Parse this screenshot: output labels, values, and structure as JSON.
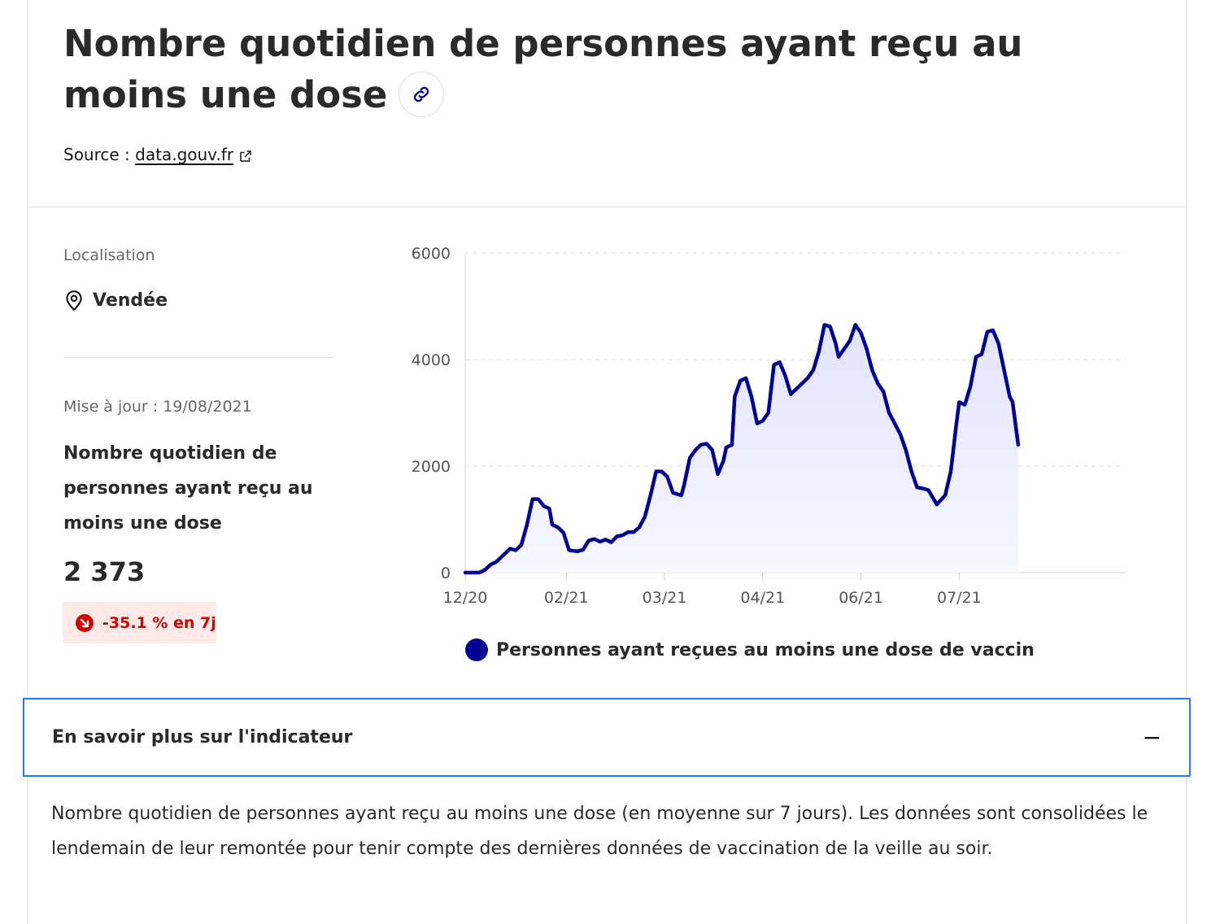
{
  "header": {
    "title": "Nombre quotidien de personnes ayant reçu au moins une dose",
    "source_prefix": "Source :",
    "source_link": "data.gouv.fr"
  },
  "sidebar": {
    "location_label": "Localisation",
    "location_value": "Vendée",
    "updated": "Mise à jour : 19/08/2021",
    "indicator_title": "Nombre quotidien de personnes ayant reçu au moins une dose",
    "value": "2 373",
    "trend": "-35.1 % en 7j"
  },
  "colors": {
    "accent": "#000091",
    "negative": "#ce0500",
    "negative_bg": "#fee9e9",
    "focus": "#2b74ff"
  },
  "chart_data": {
    "type": "area",
    "title": "",
    "xlabel": "",
    "ylabel": "",
    "ylim": [
      0,
      6000
    ],
    "y_ticks": [
      "0",
      "2000",
      "4000",
      "6000"
    ],
    "x_range": [
      "2020-12-27",
      "2021-08-19"
    ],
    "x_ticks": [
      {
        "label": "12/20",
        "date": "2020-12-27"
      },
      {
        "label": "02/21",
        "date": "2021-02-01"
      },
      {
        "label": "03/21",
        "date": "2021-03-08"
      },
      {
        "label": "04/21",
        "date": "2021-04-12"
      },
      {
        "label": "06/21",
        "date": "2021-05-17"
      },
      {
        "label": "07/21",
        "date": "2021-06-21"
      }
    ],
    "grid": true,
    "legend_position": "bottom",
    "series": [
      {
        "name": "Personnes ayant reçues au moins une dose de vaccin",
        "color": "#000091",
        "points": [
          {
            "x": "2020-12-27",
            "y": 0
          },
          {
            "x": "2021-01-01",
            "y": 0
          },
          {
            "x": "2021-01-03",
            "y": 50
          },
          {
            "x": "2021-01-05",
            "y": 150
          },
          {
            "x": "2021-01-07",
            "y": 200
          },
          {
            "x": "2021-01-09",
            "y": 300
          },
          {
            "x": "2021-01-12",
            "y": 450
          },
          {
            "x": "2021-01-14",
            "y": 420
          },
          {
            "x": "2021-01-16",
            "y": 520
          },
          {
            "x": "2021-01-18",
            "y": 900
          },
          {
            "x": "2021-01-20",
            "y": 1380
          },
          {
            "x": "2021-01-22",
            "y": 1380
          },
          {
            "x": "2021-01-24",
            "y": 1250
          },
          {
            "x": "2021-01-26",
            "y": 1200
          },
          {
            "x": "2021-01-27",
            "y": 900
          },
          {
            "x": "2021-01-29",
            "y": 850
          },
          {
            "x": "2021-01-31",
            "y": 750
          },
          {
            "x": "2021-02-02",
            "y": 420
          },
          {
            "x": "2021-02-05",
            "y": 400
          },
          {
            "x": "2021-02-07",
            "y": 430
          },
          {
            "x": "2021-02-09",
            "y": 600
          },
          {
            "x": "2021-02-11",
            "y": 630
          },
          {
            "x": "2021-02-13",
            "y": 580
          },
          {
            "x": "2021-02-15",
            "y": 620
          },
          {
            "x": "2021-02-17",
            "y": 570
          },
          {
            "x": "2021-02-19",
            "y": 680
          },
          {
            "x": "2021-02-21",
            "y": 700
          },
          {
            "x": "2021-02-23",
            "y": 760
          },
          {
            "x": "2021-02-25",
            "y": 760
          },
          {
            "x": "2021-02-27",
            "y": 850
          },
          {
            "x": "2021-03-01",
            "y": 1050
          },
          {
            "x": "2021-03-03",
            "y": 1450
          },
          {
            "x": "2021-03-05",
            "y": 1900
          },
          {
            "x": "2021-03-07",
            "y": 1900
          },
          {
            "x": "2021-03-09",
            "y": 1800
          },
          {
            "x": "2021-03-11",
            "y": 1500
          },
          {
            "x": "2021-03-14",
            "y": 1450
          },
          {
            "x": "2021-03-15",
            "y": 1650
          },
          {
            "x": "2021-03-17",
            "y": 2150
          },
          {
            "x": "2021-03-19",
            "y": 2300
          },
          {
            "x": "2021-03-21",
            "y": 2400
          },
          {
            "x": "2021-03-23",
            "y": 2420
          },
          {
            "x": "2021-03-25",
            "y": 2300
          },
          {
            "x": "2021-03-27",
            "y": 1850
          },
          {
            "x": "2021-03-29",
            "y": 2100
          },
          {
            "x": "2021-03-30",
            "y": 2350
          },
          {
            "x": "2021-04-01",
            "y": 2400
          },
          {
            "x": "2021-04-02",
            "y": 3300
          },
          {
            "x": "2021-04-04",
            "y": 3600
          },
          {
            "x": "2021-04-06",
            "y": 3650
          },
          {
            "x": "2021-04-08",
            "y": 3300
          },
          {
            "x": "2021-04-10",
            "y": 2800
          },
          {
            "x": "2021-04-12",
            "y": 2850
          },
          {
            "x": "2021-04-14",
            "y": 3000
          },
          {
            "x": "2021-04-16",
            "y": 3900
          },
          {
            "x": "2021-04-18",
            "y": 3950
          },
          {
            "x": "2021-04-20",
            "y": 3700
          },
          {
            "x": "2021-04-22",
            "y": 3350
          },
          {
            "x": "2021-04-24",
            "y": 3450
          },
          {
            "x": "2021-04-26",
            "y": 3550
          },
          {
            "x": "2021-04-28",
            "y": 3650
          },
          {
            "x": "2021-04-30",
            "y": 3800
          },
          {
            "x": "2021-05-02",
            "y": 4150
          },
          {
            "x": "2021-05-04",
            "y": 4650
          },
          {
            "x": "2021-05-06",
            "y": 4620
          },
          {
            "x": "2021-05-08",
            "y": 4300
          },
          {
            "x": "2021-05-09",
            "y": 4050
          },
          {
            "x": "2021-05-11",
            "y": 4200
          },
          {
            "x": "2021-05-13",
            "y": 4350
          },
          {
            "x": "2021-05-15",
            "y": 4650
          },
          {
            "x": "2021-05-17",
            "y": 4500
          },
          {
            "x": "2021-05-19",
            "y": 4200
          },
          {
            "x": "2021-05-21",
            "y": 3800
          },
          {
            "x": "2021-05-23",
            "y": 3550
          },
          {
            "x": "2021-05-25",
            "y": 3400
          },
          {
            "x": "2021-05-27",
            "y": 3000
          },
          {
            "x": "2021-05-29",
            "y": 2800
          },
          {
            "x": "2021-05-31",
            "y": 2600
          },
          {
            "x": "2021-06-02",
            "y": 2300
          },
          {
            "x": "2021-06-04",
            "y": 1900
          },
          {
            "x": "2021-06-06",
            "y": 1600
          },
          {
            "x": "2021-06-08",
            "y": 1580
          },
          {
            "x": "2021-06-10",
            "y": 1550
          },
          {
            "x": "2021-06-13",
            "y": 1280
          },
          {
            "x": "2021-06-16",
            "y": 1450
          },
          {
            "x": "2021-06-18",
            "y": 1900
          },
          {
            "x": "2021-06-20",
            "y": 2800
          },
          {
            "x": "2021-06-21",
            "y": 3200
          },
          {
            "x": "2021-06-23",
            "y": 3150
          },
          {
            "x": "2021-06-25",
            "y": 3500
          },
          {
            "x": "2021-06-27",
            "y": 4050
          },
          {
            "x": "2021-06-29",
            "y": 4100
          },
          {
            "x": "2021-07-01",
            "y": 4520
          },
          {
            "x": "2021-07-03",
            "y": 4550
          },
          {
            "x": "2021-07-05",
            "y": 4300
          },
          {
            "x": "2021-07-07",
            "y": 3800
          },
          {
            "x": "2021-07-09",
            "y": 3300
          },
          {
            "x": "2021-07-10",
            "y": 3200
          },
          {
            "x": "2021-07-12",
            "y": 2400
          }
        ]
      }
    ]
  },
  "accordion": {
    "label": "En savoir plus sur l'indicateur",
    "toggle": "−",
    "description": "Nombre quotidien de personnes ayant reçu au moins une dose (en moyenne sur 7 jours). Les données sont consolidées le lendemain de leur remontée pour tenir compte des dernières données de vaccination de la veille au soir."
  }
}
